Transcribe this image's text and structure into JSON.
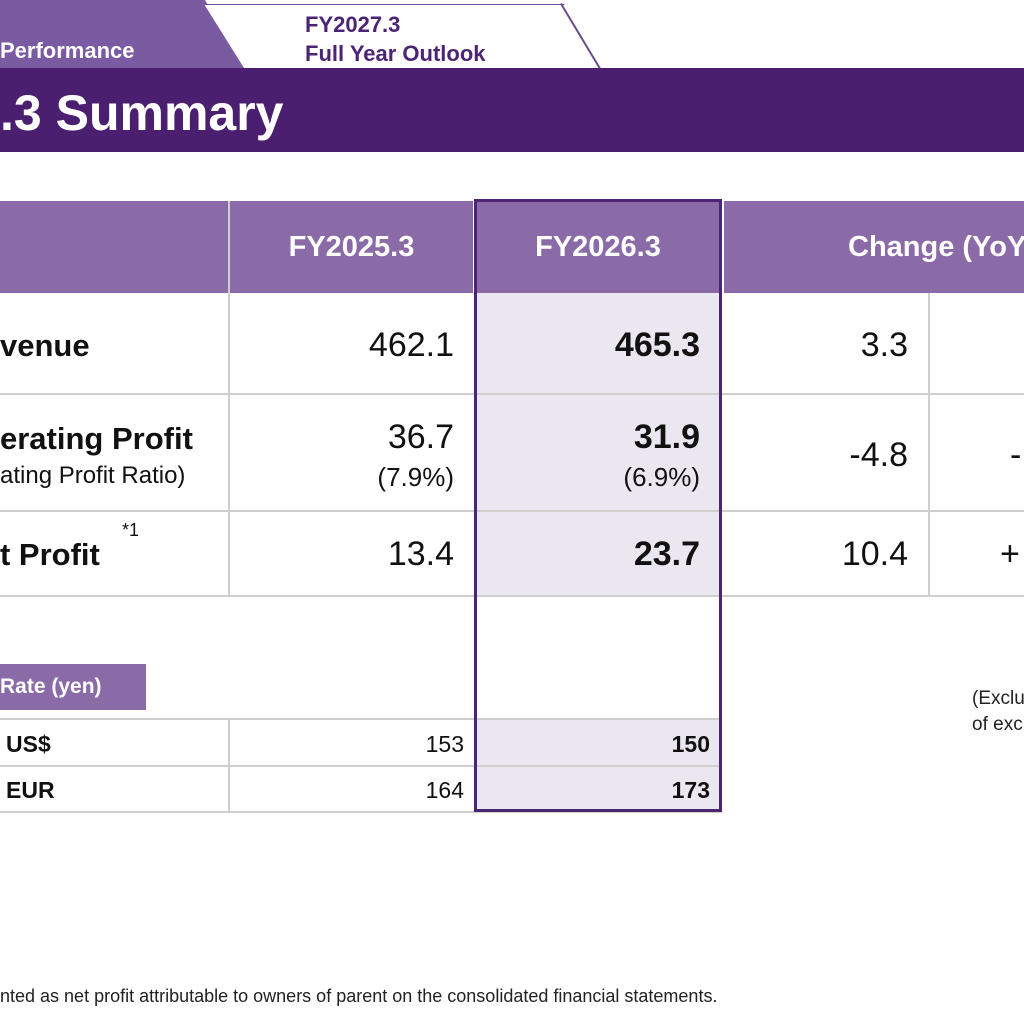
{
  "tabs": {
    "left_label": "Performance",
    "right_line1": "FY2027.3",
    "right_line2": "Full Year Outlook"
  },
  "title": ".3 Summary",
  "table": {
    "headers": {
      "col1": "FY2025.3",
      "col2": "FY2026.3",
      "col3": "Change (YoY"
    },
    "rows": {
      "revenue": {
        "label": "venue",
        "fy2025": "462.1",
        "fy2026": "465.3",
        "change": "3.3"
      },
      "op": {
        "label": "erating Profit",
        "sublabel": "ating Profit Ratio)",
        "fy2025": "36.7",
        "fy2025_ratio": "(7.9%)",
        "fy2026": "31.9",
        "fy2026_ratio": "(6.9%)",
        "change": "-4.8",
        "change2": "-"
      },
      "np": {
        "label": "t Profit",
        "footnote_mark": "*1",
        "fy2025": "13.4",
        "fy2026": "23.7",
        "change": "10.4",
        "change2": "+"
      }
    }
  },
  "rates": {
    "header": "Rate (yen)",
    "rows": [
      {
        "currency": "US$",
        "fy2025": "153",
        "fy2026": "150"
      },
      {
        "currency": "EUR",
        "fy2025": "164",
        "fy2026": "173"
      }
    ]
  },
  "side_note": {
    "line1": "(Exclu",
    "line2": "of exc"
  },
  "footnote": "nted as net profit attributable to owners of parent on the consolidated financial statements."
}
